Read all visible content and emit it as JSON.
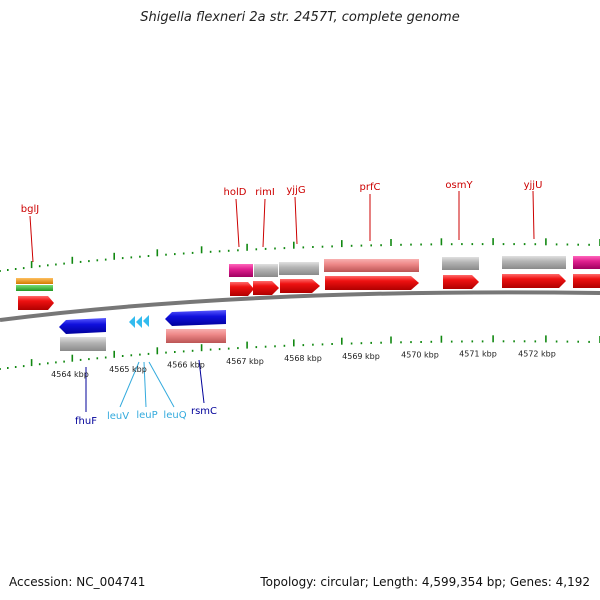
{
  "title": "Shigella flexneri 2a str. 2457T, complete genome",
  "footer": {
    "accession": "Accession: NC_004741",
    "topology": "Topology: circular; Length: 4,599,354 bp; Genes: 4,192"
  },
  "colors": {
    "cds": "#ee1111",
    "cds_light": "#ee8888",
    "gene_gray": "#b5b5b5",
    "magenta": "#e0208f",
    "blue": "#1010dd",
    "trna_cyan": "#33bbee",
    "rrna_orange": "#f29a1a",
    "rrna_green": "#33bb33",
    "label_red": "#cc0000",
    "label_navy": "#000099",
    "label_cyan": "#33aadd",
    "tick_green": "#118811",
    "backbone": "#777777"
  },
  "scale": {
    "unit": "kbp",
    "ticks": [
      4564,
      4565,
      4566,
      4567,
      4568,
      4569,
      4570,
      4571,
      4572
    ]
  },
  "top_labels": [
    "bglJ",
    "holD",
    "rimI",
    "yjjG",
    "prfC",
    "osmY",
    "yjjU"
  ],
  "bottom_labels": [
    {
      "text": "fhuF",
      "color": "label_navy"
    },
    {
      "text": "leuV",
      "color": "label_cyan"
    },
    {
      "text": "leuP",
      "color": "label_cyan"
    },
    {
      "text": "leuQ",
      "color": "label_cyan"
    },
    {
      "text": "rsmC",
      "color": "label_navy"
    }
  ]
}
